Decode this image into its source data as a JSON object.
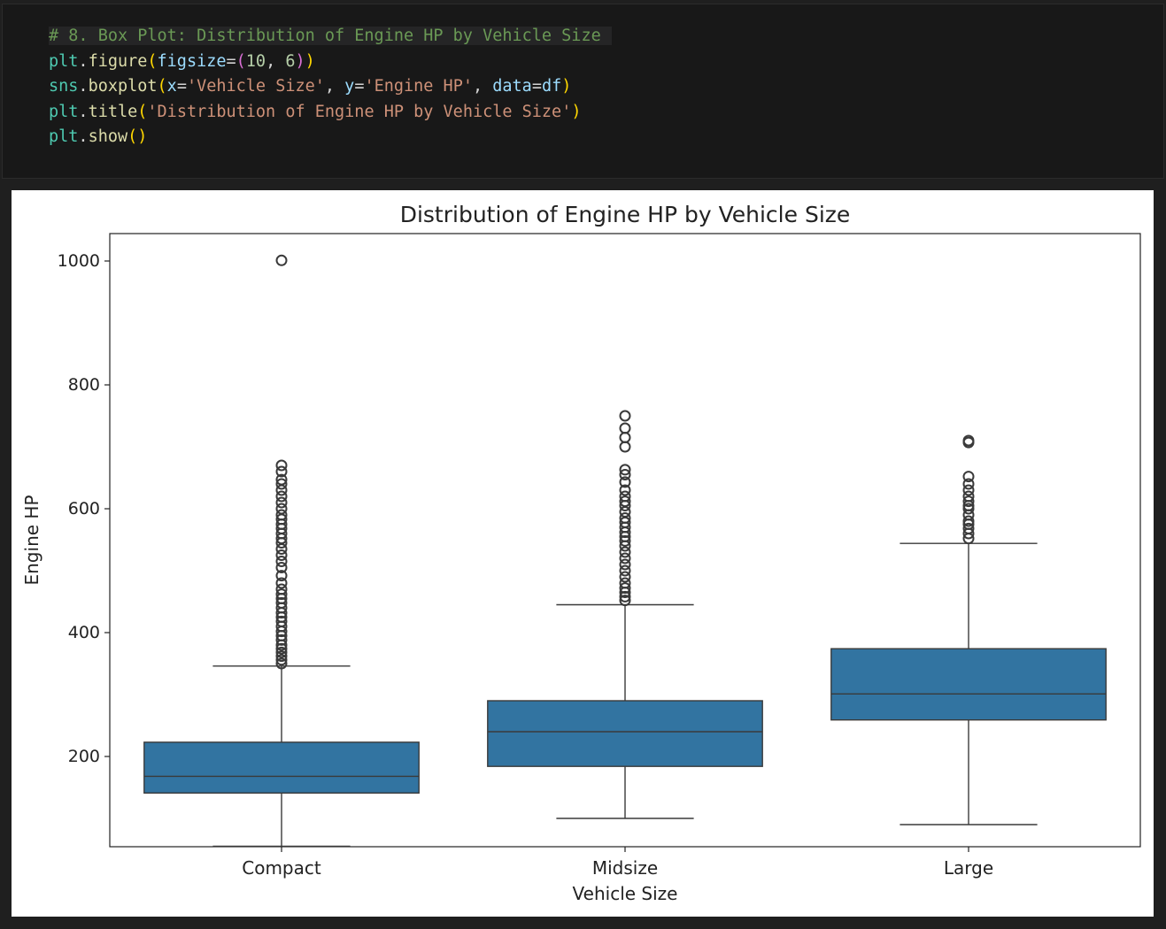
{
  "code_cell": {
    "lines": [
      [
        {
          "t": "# 8. Box Plot: Distribution of Engine HP by Vehicle Size",
          "c": "comment"
        }
      ],
      [
        {
          "t": "plt",
          "c": "tok-id"
        },
        {
          "t": ".",
          "c": "tok-punc"
        },
        {
          "t": "figure",
          "c": "tok-fn"
        },
        {
          "t": "(",
          "c": "tok-paren1"
        },
        {
          "t": "figsize",
          "c": "tok-param"
        },
        {
          "t": "=",
          "c": "tok-punc"
        },
        {
          "t": "(",
          "c": "tok-paren2"
        },
        {
          "t": "10",
          "c": "tok-num"
        },
        {
          "t": ", ",
          "c": "tok-punc"
        },
        {
          "t": "6",
          "c": "tok-num"
        },
        {
          "t": ")",
          "c": "tok-paren2"
        },
        {
          "t": ")",
          "c": "tok-paren1"
        }
      ],
      [
        {
          "t": "sns",
          "c": "tok-id"
        },
        {
          "t": ".",
          "c": "tok-punc"
        },
        {
          "t": "boxplot",
          "c": "tok-fn"
        },
        {
          "t": "(",
          "c": "tok-paren1"
        },
        {
          "t": "x",
          "c": "tok-param"
        },
        {
          "t": "=",
          "c": "tok-punc"
        },
        {
          "t": "'Vehicle Size'",
          "c": "tok-str"
        },
        {
          "t": ", ",
          "c": "tok-punc"
        },
        {
          "t": "y",
          "c": "tok-param"
        },
        {
          "t": "=",
          "c": "tok-punc"
        },
        {
          "t": "'Engine HP'",
          "c": "tok-str"
        },
        {
          "t": ", ",
          "c": "tok-punc"
        },
        {
          "t": "data",
          "c": "tok-param"
        },
        {
          "t": "=",
          "c": "tok-punc"
        },
        {
          "t": "df",
          "c": "tok-param"
        },
        {
          "t": ")",
          "c": "tok-paren1"
        }
      ],
      [
        {
          "t": "plt",
          "c": "tok-id"
        },
        {
          "t": ".",
          "c": "tok-punc"
        },
        {
          "t": "title",
          "c": "tok-fn"
        },
        {
          "t": "(",
          "c": "tok-paren1"
        },
        {
          "t": "'Distribution of Engine HP by Vehicle Size'",
          "c": "tok-str"
        },
        {
          "t": ")",
          "c": "tok-paren1"
        }
      ],
      [
        {
          "t": "plt",
          "c": "tok-id"
        },
        {
          "t": ".",
          "c": "tok-punc"
        },
        {
          "t": "show",
          "c": "tok-fn"
        },
        {
          "t": "()",
          "c": "tok-paren1"
        }
      ]
    ]
  },
  "chart_data": {
    "type": "box",
    "title": "Distribution of Engine HP by Vehicle Size",
    "xlabel": "Vehicle Size",
    "ylabel": "Engine HP",
    "ylim": [
      0,
      1050
    ],
    "yticks": [
      200,
      400,
      600,
      800,
      1000
    ],
    "categories": [
      "Compact",
      "Midsize",
      "Large"
    ],
    "box_color": "#3274a1",
    "boxes": [
      {
        "category": "Compact",
        "whisker_low": 55,
        "q1": 141,
        "median": 168,
        "q3": 223,
        "whisker_high": 346,
        "outliers": [
          350,
          356,
          362,
          368,
          374,
          380,
          388,
          395,
          402,
          410,
          418,
          425,
          432,
          440,
          448,
          455,
          462,
          470,
          480,
          492,
          505,
          515,
          525,
          535,
          545,
          552,
          560,
          568,
          575,
          583,
          590,
          600,
          610,
          620,
          630,
          640,
          647,
          660,
          670,
          1001
        ]
      },
      {
        "category": "Midsize",
        "whisker_low": 100,
        "q1": 184,
        "median": 240,
        "q3": 290,
        "whisker_high": 445,
        "outliers": [
          452,
          458,
          465,
          472,
          480,
          490,
          500,
          510,
          520,
          530,
          540,
          548,
          555,
          562,
          570,
          578,
          585,
          595,
          605,
          612,
          620,
          630,
          643,
          655,
          663,
          700,
          715,
          730,
          750
        ]
      },
      {
        "category": "Large",
        "whisker_low": 90,
        "q1": 259,
        "median": 301,
        "q3": 374,
        "whisker_high": 544,
        "outliers": [
          552,
          560,
          568,
          575,
          580,
          590,
          600,
          605,
          612,
          620,
          630,
          640,
          652,
          707,
          710
        ]
      }
    ]
  }
}
